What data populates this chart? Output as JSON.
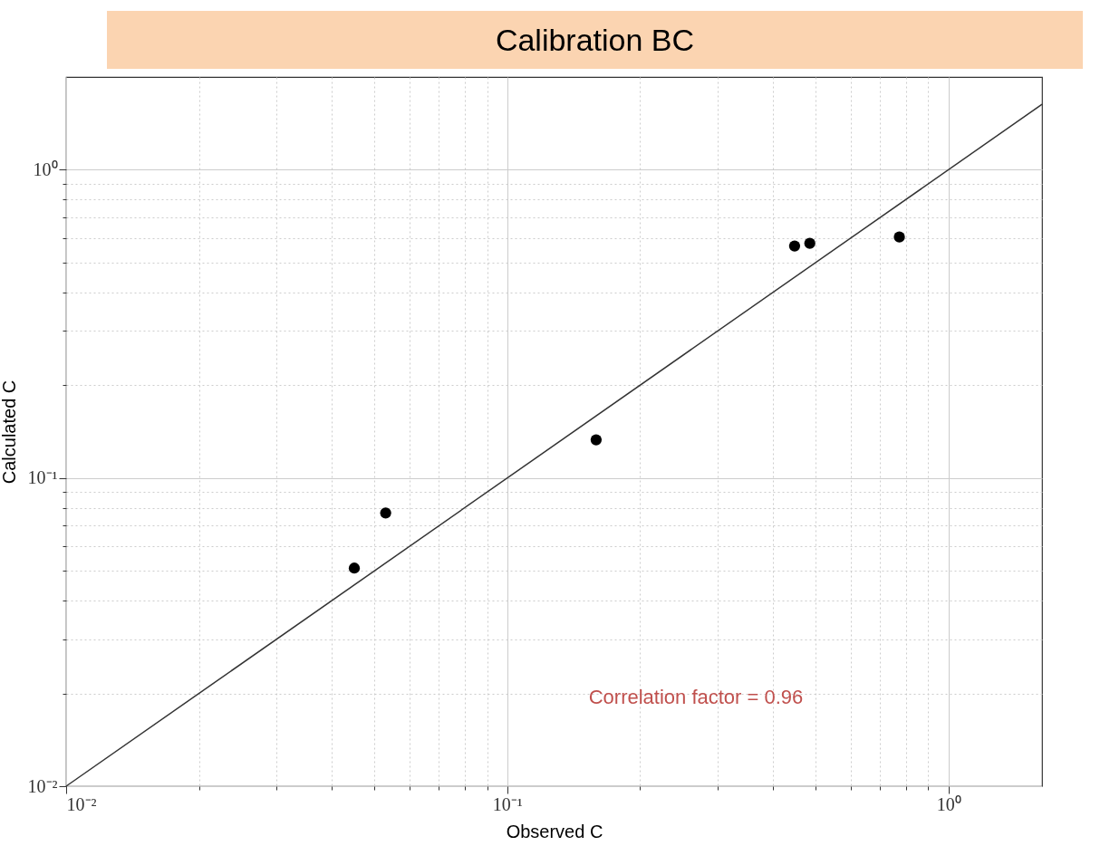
{
  "chart_data": {
    "type": "scatter",
    "title": "Calibration BC",
    "xlabel": "Observed C",
    "ylabel": "Calculated C",
    "log": "xy",
    "grid": true,
    "marker": "circle",
    "xlim": [
      0.01,
      1.63
    ],
    "ylim": [
      0.01,
      2
    ],
    "xticks": [
      {
        "value": 0.01,
        "label": "10⁻²"
      },
      {
        "value": 0.02,
        "label": null
      },
      {
        "value": 0.03,
        "label": null
      },
      {
        "value": 0.04,
        "label": null
      },
      {
        "value": 0.05,
        "label": null
      },
      {
        "value": 0.06,
        "label": null
      },
      {
        "value": 0.07,
        "label": null
      },
      {
        "value": 0.08,
        "label": null
      },
      {
        "value": 0.09,
        "label": null
      },
      {
        "value": 0.1,
        "label": "10⁻¹"
      },
      {
        "value": 0.2,
        "label": null
      },
      {
        "value": 0.3,
        "label": null
      },
      {
        "value": 0.4,
        "label": null
      },
      {
        "value": 0.5,
        "label": null
      },
      {
        "value": 0.6,
        "label": null
      },
      {
        "value": 0.7,
        "label": null
      },
      {
        "value": 0.8,
        "label": null
      },
      {
        "value": 0.9,
        "label": null
      },
      {
        "value": 1,
        "label": "10⁰"
      }
    ],
    "yticks": [
      {
        "value": 0.01,
        "label": "10⁻²"
      },
      {
        "value": 0.02,
        "label": null
      },
      {
        "value": 0.03,
        "label": null
      },
      {
        "value": 0.04,
        "label": null
      },
      {
        "value": 0.05,
        "label": null
      },
      {
        "value": 0.06,
        "label": null
      },
      {
        "value": 0.07,
        "label": null
      },
      {
        "value": 0.08,
        "label": null
      },
      {
        "value": 0.09,
        "label": null
      },
      {
        "value": 0.1,
        "label": "10⁻¹"
      },
      {
        "value": 0.2,
        "label": null
      },
      {
        "value": 0.3,
        "label": null
      },
      {
        "value": 0.4,
        "label": null
      },
      {
        "value": 0.5,
        "label": null
      },
      {
        "value": 0.6,
        "label": null
      },
      {
        "value": 0.7,
        "label": null
      },
      {
        "value": 0.8,
        "label": null
      },
      {
        "value": 0.9,
        "label": null
      },
      {
        "value": 1,
        "label": "10⁰"
      }
    ],
    "series": [
      {
        "color": "#000000",
        "x": [
          0.045,
          0.053,
          0.159,
          0.448,
          0.485,
          0.774
        ],
        "values": [
          0.051,
          0.077,
          0.133,
          0.566,
          0.577,
          0.605
        ]
      },
      {
        "type": "line",
        "color": "#333333",
        "line_style": "solid",
        "marker": "none",
        "x": [
          0.01,
          1.63
        ],
        "values": [
          0.01,
          1.63
        ]
      }
    ],
    "annotations": [
      "Correlation factor = 0.96"
    ]
  }
}
